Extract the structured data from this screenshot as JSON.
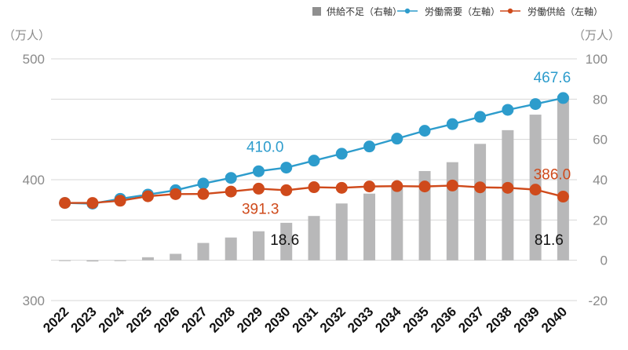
{
  "chart_data": {
    "type": "bar+line",
    "categories": [
      "2022",
      "2023",
      "2024",
      "2025",
      "2026",
      "2027",
      "2028",
      "2029",
      "2030",
      "2031",
      "2032",
      "2033",
      "2034",
      "2035",
      "2036",
      "2037",
      "2038",
      "2039",
      "2040"
    ],
    "left_axis": {
      "unit_label": "（万人）",
      "ylim": [
        300,
        500
      ],
      "ticks": [
        300,
        400,
        500
      ]
    },
    "right_axis": {
      "unit_label": "（万人）",
      "ylim": [
        -20,
        100
      ],
      "ticks": [
        -20,
        0,
        20,
        40,
        60,
        80,
        100
      ]
    },
    "series": [
      {
        "name": "供給不足（右軸）",
        "type": "bar",
        "axis": "right",
        "color": "#b8b8b9",
        "values": [
          0,
          -0.6,
          -0.4,
          1.5,
          3.2,
          8.6,
          11.3,
          14.4,
          18.6,
          22.0,
          28.2,
          33.1,
          37.4,
          44.3,
          48.7,
          57.8,
          64.6,
          72.3,
          81.6
        ]
      },
      {
        "name": "労働需要（左軸）",
        "type": "line",
        "axis": "left",
        "color": "#2d9ccc",
        "values": [
          380.8,
          380.2,
          384.2,
          387.7,
          391.3,
          396.8,
          401.5,
          407.0,
          410.0,
          415.8,
          421.5,
          427.5,
          434.0,
          440.5,
          446.0,
          452.0,
          457.8,
          462.6,
          467.6
        ]
      },
      {
        "name": "労働供給（左軸）",
        "type": "line",
        "axis": "left",
        "color": "#cf4a1b",
        "values": [
          380.8,
          380.8,
          382.6,
          386.3,
          388.1,
          388.2,
          390.2,
          392.6,
          391.3,
          393.8,
          393.3,
          394.4,
          394.7,
          394.4,
          395.2,
          393.7,
          393.3,
          391.8,
          386.0
        ]
      }
    ],
    "annotations": [
      {
        "text": "410.0",
        "series": "労働需要（左軸）",
        "category": "2030"
      },
      {
        "text": "467.6",
        "series": "労働需要（左軸）",
        "category": "2040"
      },
      {
        "text": "391.3",
        "series": "労働供給（左軸）",
        "category": "2030"
      },
      {
        "text": "386.0",
        "series": "労働供給（左軸）",
        "category": "2040"
      },
      {
        "text": "18.6",
        "series": "供給不足（右軸）",
        "category": "2030"
      },
      {
        "text": "81.6",
        "series": "供給不足（右軸）",
        "category": "2040"
      }
    ],
    "legend": {
      "position": "top-right"
    },
    "grid": true
  }
}
